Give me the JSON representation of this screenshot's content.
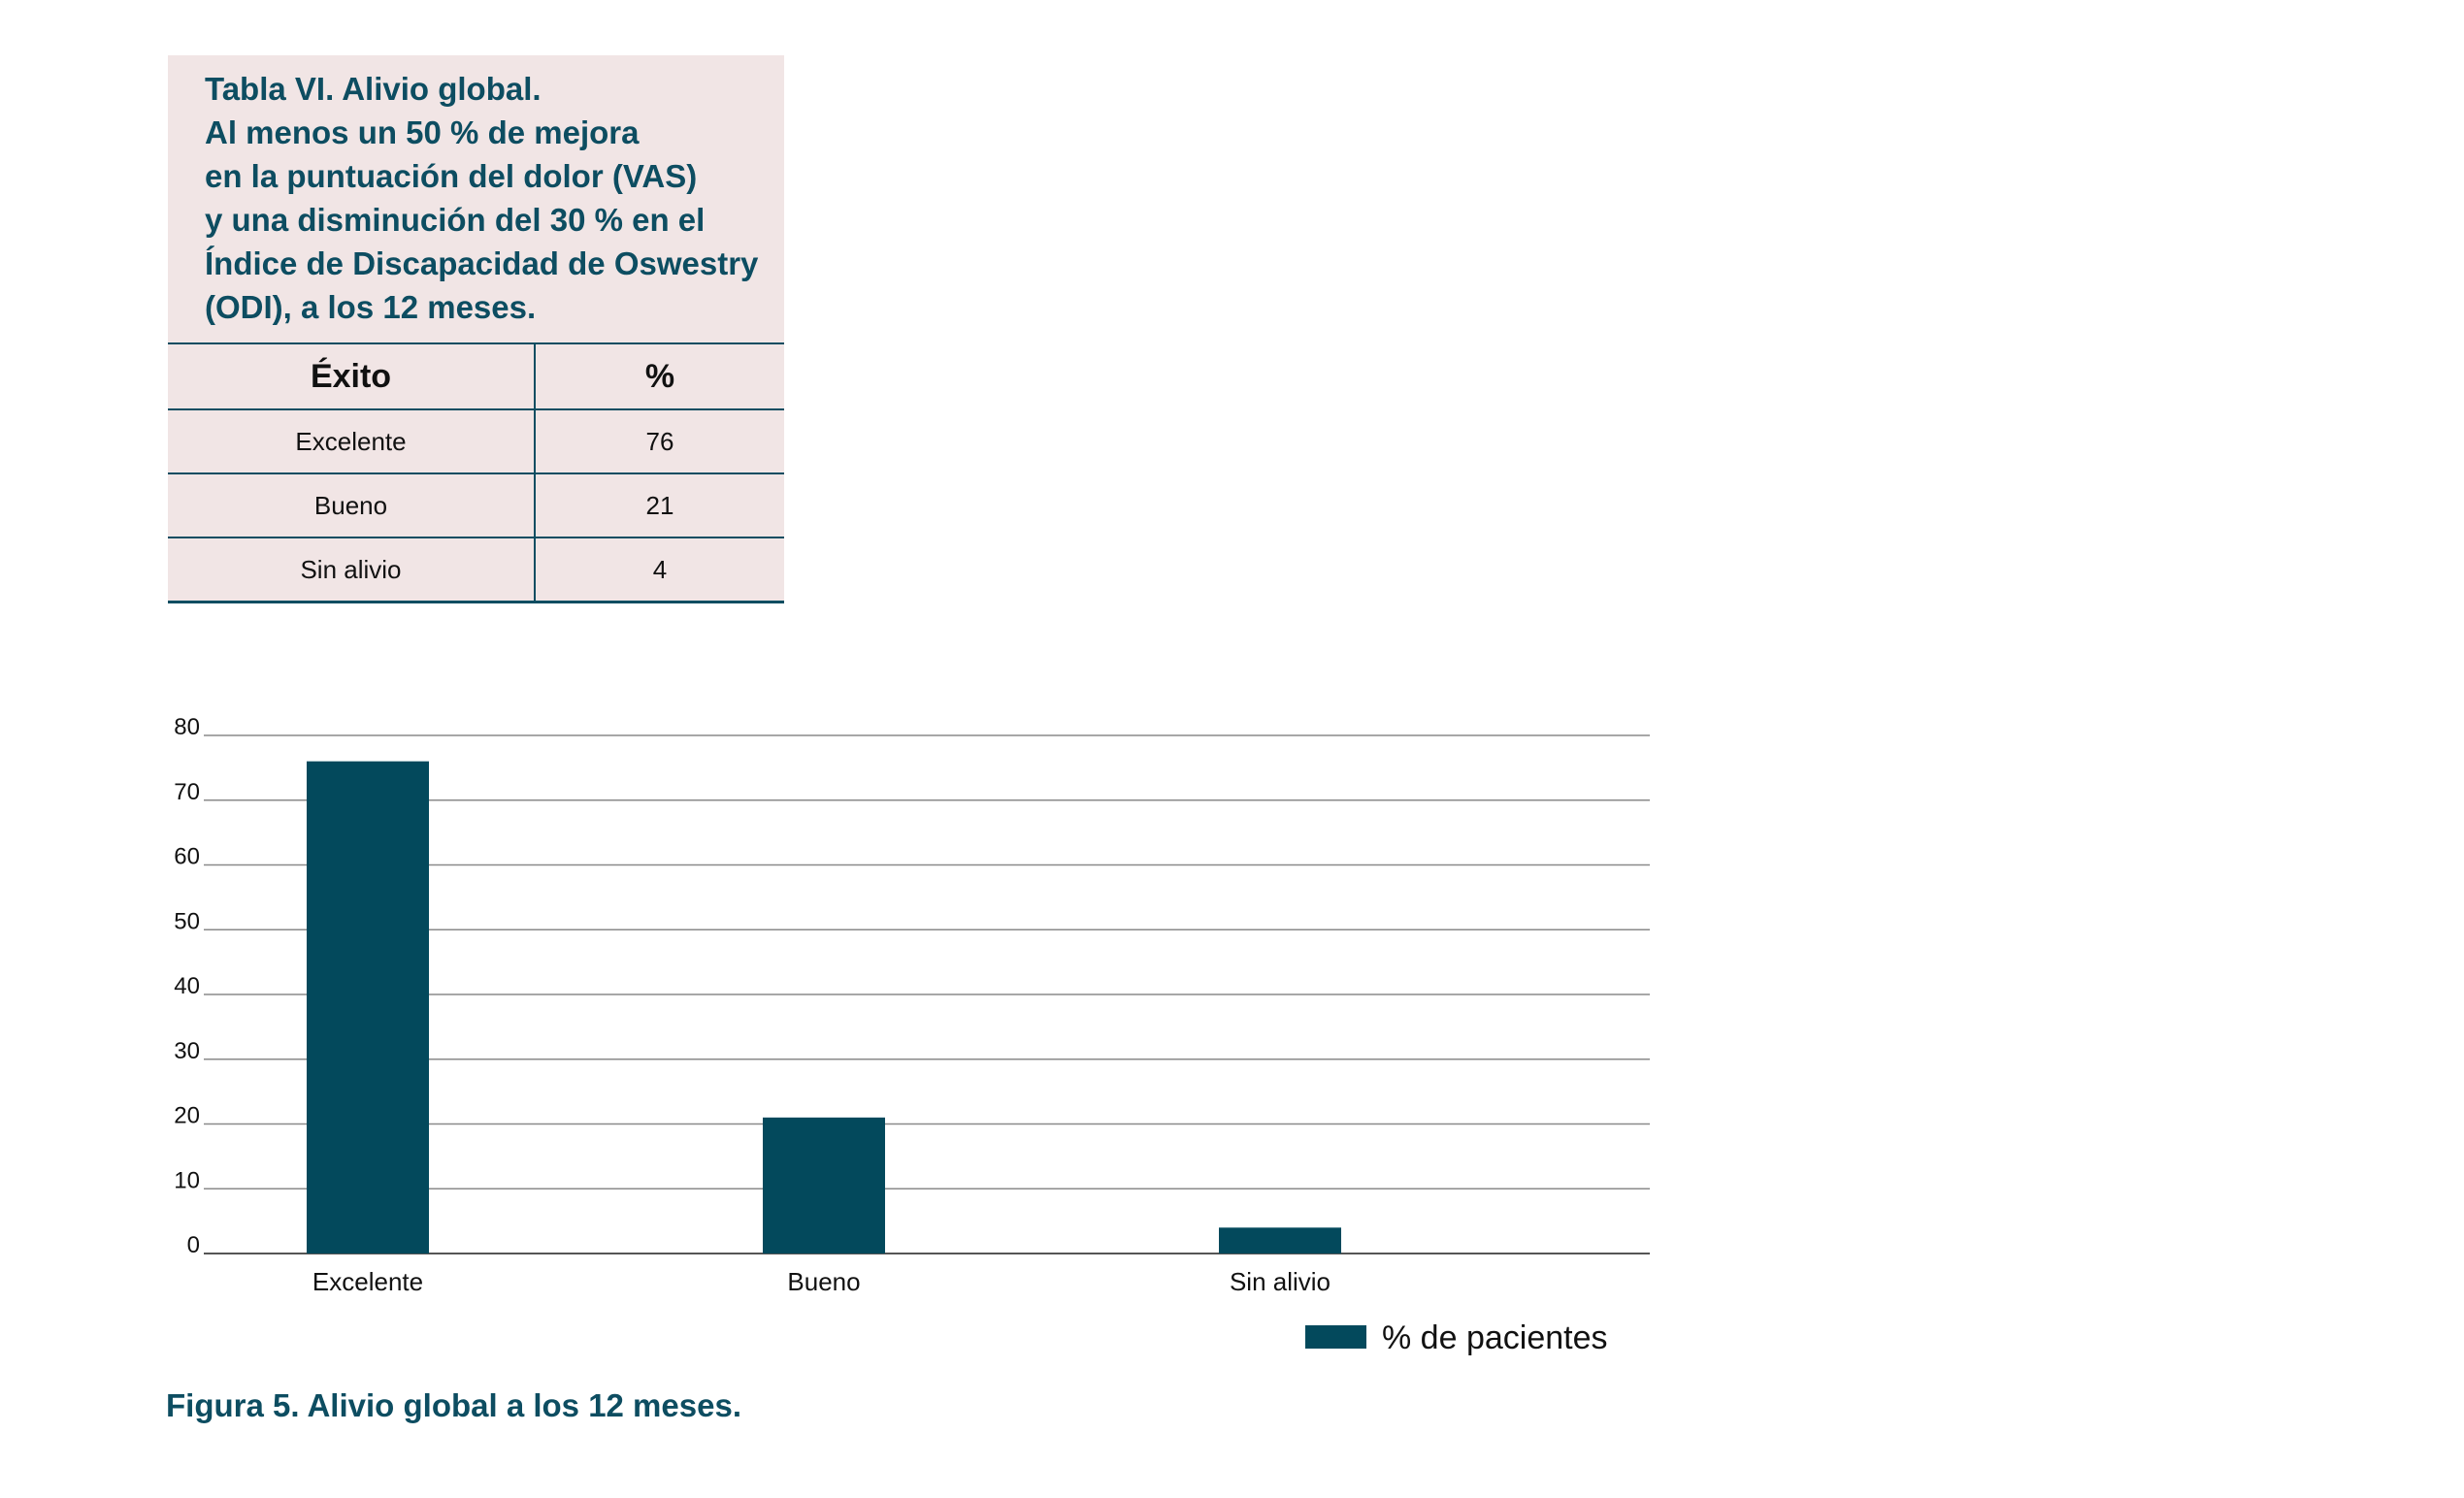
{
  "table": {
    "title_lines": [
      "Tabla VI. Alivio global.",
      "Al menos un 50 % de mejora",
      "en la puntuación del dolor (VAS)",
      "y una disminución del 30 % en el",
      "Índice de Discapacidad de Oswestry",
      "(ODI), a los 12 meses."
    ],
    "headers": [
      "Éxito",
      "%"
    ],
    "rows": [
      [
        "Excelente",
        "76"
      ],
      [
        "Bueno",
        "21"
      ],
      [
        "Sin alivio",
        "4"
      ]
    ]
  },
  "chart_data": {
    "type": "bar",
    "categories": [
      "Excelente",
      "Bueno",
      "Sin alivio"
    ],
    "series": [
      {
        "name": "% de pacientes",
        "values": [
          76,
          21,
          4
        ],
        "color": "#03495c"
      }
    ],
    "y_ticks": [
      "0",
      "10",
      "20",
      "30",
      "40",
      "50",
      "60",
      "70",
      "80"
    ],
    "ylim": [
      0,
      80
    ],
    "grid": true,
    "legend": "bottom-right",
    "title": "",
    "xlabel": "",
    "ylabel": ""
  },
  "caption": "Figura 5. Alivio global a los 12 meses."
}
